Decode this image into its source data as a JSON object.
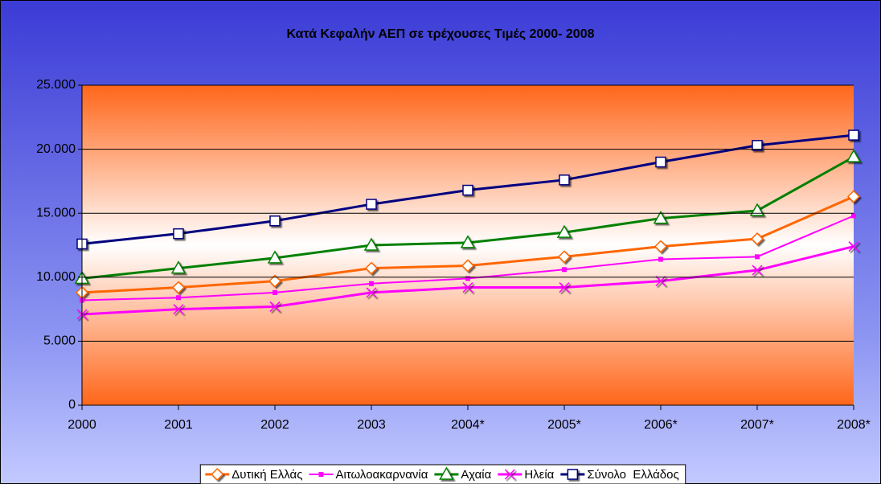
{
  "chart_data": {
    "type": "line",
    "title": "Κατά Κεφαλήν ΑΕΠ σε τρέχουσες Τιμές 2000- 2008",
    "categories": [
      "2000",
      "2001",
      "2002",
      "2003",
      "2004*",
      "2005*",
      "2006*",
      "2007*",
      "2008*"
    ],
    "series": [
      {
        "name": "Δυτική Ελλάς",
        "color": "#ff6600",
        "marker": "diamond",
        "values": [
          8800,
          9200,
          9700,
          10700,
          10900,
          11600,
          12400,
          13000,
          16300
        ]
      },
      {
        "name": "Αιτωλοακαρνανία",
        "color": "#ff00ff",
        "marker": "square-filled",
        "values": [
          8200,
          8400,
          8800,
          9500,
          9900,
          10600,
          11400,
          11600,
          14800
        ]
      },
      {
        "name": "Αχαία",
        "color": "#008000",
        "marker": "triangle",
        "values": [
          9900,
          10700,
          11500,
          12500,
          12700,
          13500,
          14600,
          15200,
          19400
        ]
      },
      {
        "name": "Ηλεία",
        "color": "#ff00ff",
        "marker": "x",
        "values": [
          7100,
          7500,
          7700,
          8800,
          9200,
          9200,
          9700,
          10550,
          12400
        ]
      },
      {
        "name": "Σύνολο  Ελλάδος",
        "color": "#000080",
        "marker": "square",
        "values": [
          12600,
          13400,
          14400,
          15700,
          16800,
          17600,
          19000,
          20300,
          21100
        ]
      }
    ],
    "ylim": [
      0,
      25000
    ],
    "yticks": [
      0,
      {
        "value": 5000,
        "label": "5.000"
      },
      {
        "value": 10000,
        "label": "10.000"
      },
      {
        "value": 15000,
        "label": "15.000"
      },
      {
        "value": 20000,
        "label": "20.000"
      },
      {
        "value": 25000,
        "label": "25.000"
      }
    ],
    "grid": true,
    "legend": "bottom"
  }
}
